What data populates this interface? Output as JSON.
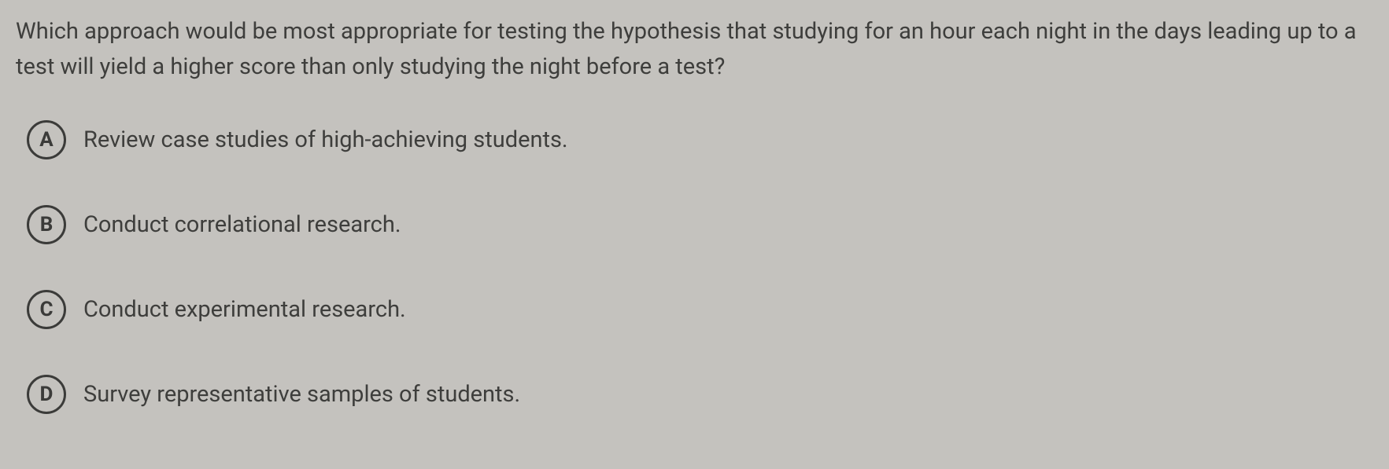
{
  "question": {
    "text": "Which approach would be most appropriate for testing the hypothesis that studying for an hour each night in the days leading up to a test will yield a higher score than only studying the night before a test?"
  },
  "options": [
    {
      "letter": "A",
      "text": "Review case studies of high-achieving students."
    },
    {
      "letter": "B",
      "text": "Conduct correlational research."
    },
    {
      "letter": "C",
      "text": "Conduct experimental research."
    },
    {
      "letter": "D",
      "text": "Survey representative samples of students."
    }
  ],
  "styling": {
    "background_color": "#c4c2be",
    "text_color": "#3e3e3c",
    "circle_border_color": "#3b3b39",
    "circle_border_width": 3,
    "question_fontsize": 29,
    "option_fontsize": 29,
    "letter_fontsize": 26,
    "letter_fontweight": 700,
    "circle_size": 50,
    "option_gap": 58,
    "line_height": 1.55
  }
}
